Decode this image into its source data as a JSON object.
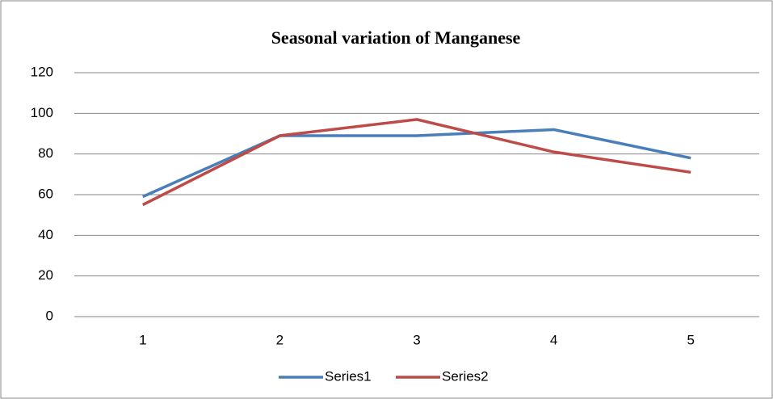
{
  "chart_data": {
    "type": "line",
    "title": "Seasonal variation of Manganese",
    "categories": [
      "1",
      "2",
      "3",
      "4",
      "5"
    ],
    "series": [
      {
        "name": "Series1",
        "color": "#4a7ebb",
        "values": [
          59,
          89,
          89,
          92,
          78
        ]
      },
      {
        "name": "Series2",
        "color": "#be4b48",
        "values": [
          55,
          89,
          97,
          81,
          71
        ]
      }
    ],
    "ylim": [
      0,
      120
    ],
    "yticks": [
      0,
      20,
      40,
      60,
      80,
      100,
      120
    ],
    "grid": true,
    "legend": "bottom"
  }
}
